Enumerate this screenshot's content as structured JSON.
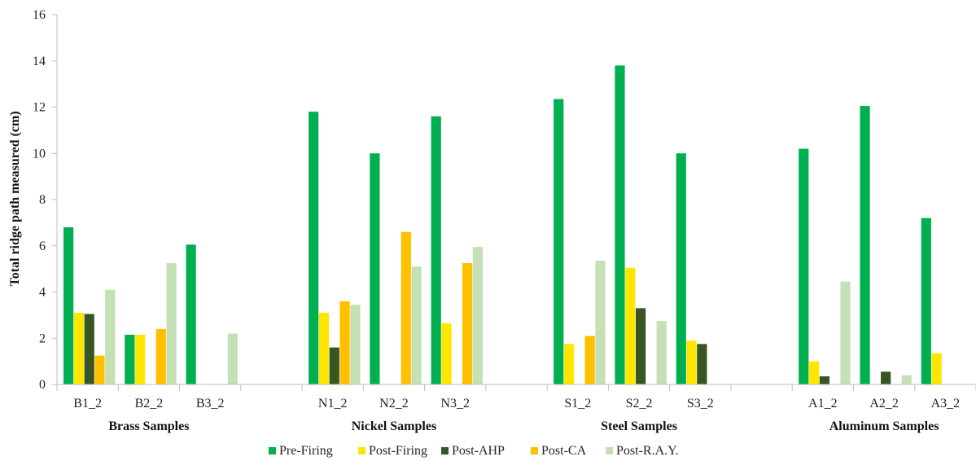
{
  "chart_data": {
    "type": "bar",
    "title": "",
    "xlabel": "",
    "ylabel": "Total ridge path measured (cm)",
    "ylim": [
      0,
      16
    ],
    "yticks": [
      "0",
      "2",
      "4",
      "6",
      "8",
      "10",
      "12",
      "14",
      "16"
    ],
    "grid": false,
    "legend_position": "bottom",
    "categories": [
      "B1_2",
      "B2_2",
      "B3_2",
      "",
      "N1_2",
      "N2_2",
      "N3_2",
      "",
      "S1_2",
      "S2_2",
      "S3_2",
      "",
      "A1_2",
      "A2_2",
      "A3_2"
    ],
    "groups": [
      {
        "label": "Brass Samples",
        "start": 0,
        "end": 2
      },
      {
        "label": "Nickel Samples",
        "start": 4,
        "end": 6
      },
      {
        "label": "Steel Samples",
        "start": 8,
        "end": 10
      },
      {
        "label": "Aluminum  Samples",
        "start": 12,
        "end": 14
      }
    ],
    "series": [
      {
        "name": "Pre-Firing",
        "color": "#00b050",
        "values": [
          6.8,
          2.15,
          6.05,
          null,
          11.8,
          10.0,
          11.6,
          null,
          12.35,
          13.8,
          10.0,
          null,
          10.2,
          12.05,
          7.2
        ]
      },
      {
        "name": "Post-Firing",
        "color": "#ffe600",
        "values": [
          3.1,
          2.15,
          null,
          null,
          3.1,
          null,
          2.65,
          null,
          1.75,
          5.05,
          1.9,
          null,
          1.0,
          null,
          1.35
        ]
      },
      {
        "name": "Post-AHP",
        "color": "#375623",
        "values": [
          3.05,
          null,
          null,
          null,
          1.6,
          null,
          null,
          null,
          null,
          3.3,
          1.75,
          null,
          0.35,
          0.55,
          null
        ]
      },
      {
        "name": "Post-CA",
        "color": "#ffc000",
        "values": [
          1.25,
          2.4,
          null,
          null,
          3.6,
          6.6,
          5.25,
          null,
          2.1,
          null,
          null,
          null,
          null,
          null,
          null
        ]
      },
      {
        "name": "Post-R.A.Y.",
        "color": "#c5e0b4",
        "values": [
          4.1,
          5.25,
          2.2,
          null,
          3.45,
          5.1,
          5.95,
          null,
          5.35,
          2.75,
          null,
          null,
          4.45,
          0.4,
          null
        ]
      }
    ]
  }
}
